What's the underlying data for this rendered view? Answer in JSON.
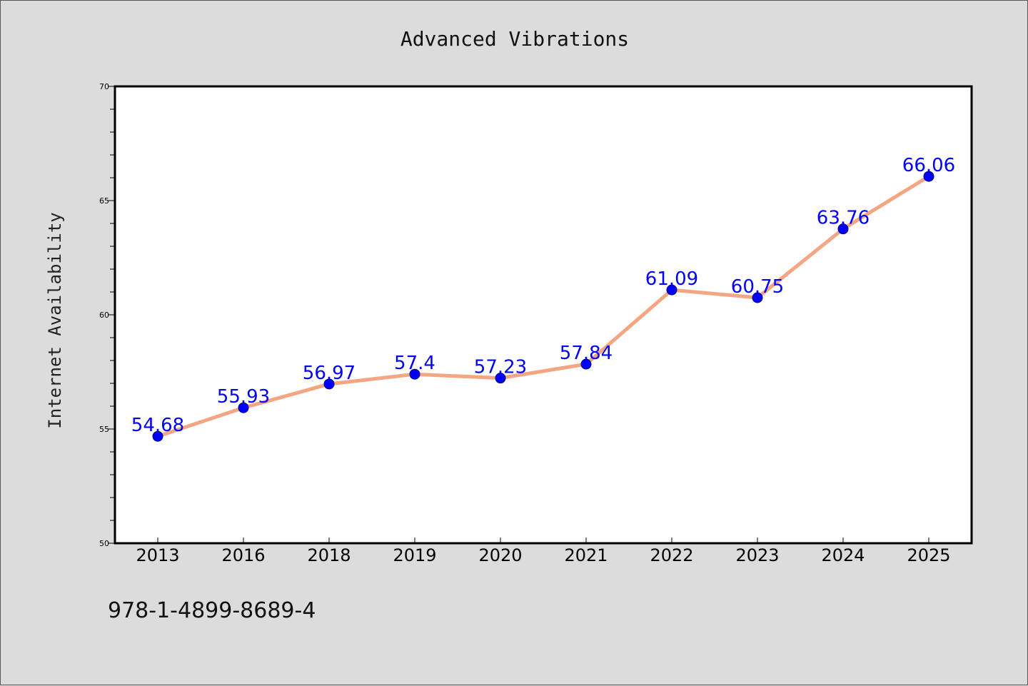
{
  "chart_data": {
    "type": "line",
    "title": "Advanced Vibrations",
    "xlabel": "",
    "ylabel": "Internet Availability",
    "categories": [
      "2013",
      "2016",
      "2018",
      "2019",
      "2020",
      "2021",
      "2022",
      "2023",
      "2024",
      "2025"
    ],
    "series": [
      {
        "values": [
          54.68,
          55.93,
          56.97,
          57.4,
          57.23,
          57.84,
          61.09,
          60.75,
          63.76,
          66.06
        ],
        "line_color": "#f4a582",
        "marker_color": "#0000ff"
      }
    ],
    "data_labels": [
      "54.68",
      "55.93",
      "56.97",
      "57.4",
      "57.23",
      "57.84",
      "61.09",
      "60.75",
      "63.76",
      "66.06"
    ],
    "ylim": [
      50,
      70
    ],
    "yticks": [
      50,
      55,
      60,
      65,
      70
    ],
    "grid": false,
    "legend": "none"
  },
  "footer": {
    "text": "978-1-4899-8689-4"
  }
}
